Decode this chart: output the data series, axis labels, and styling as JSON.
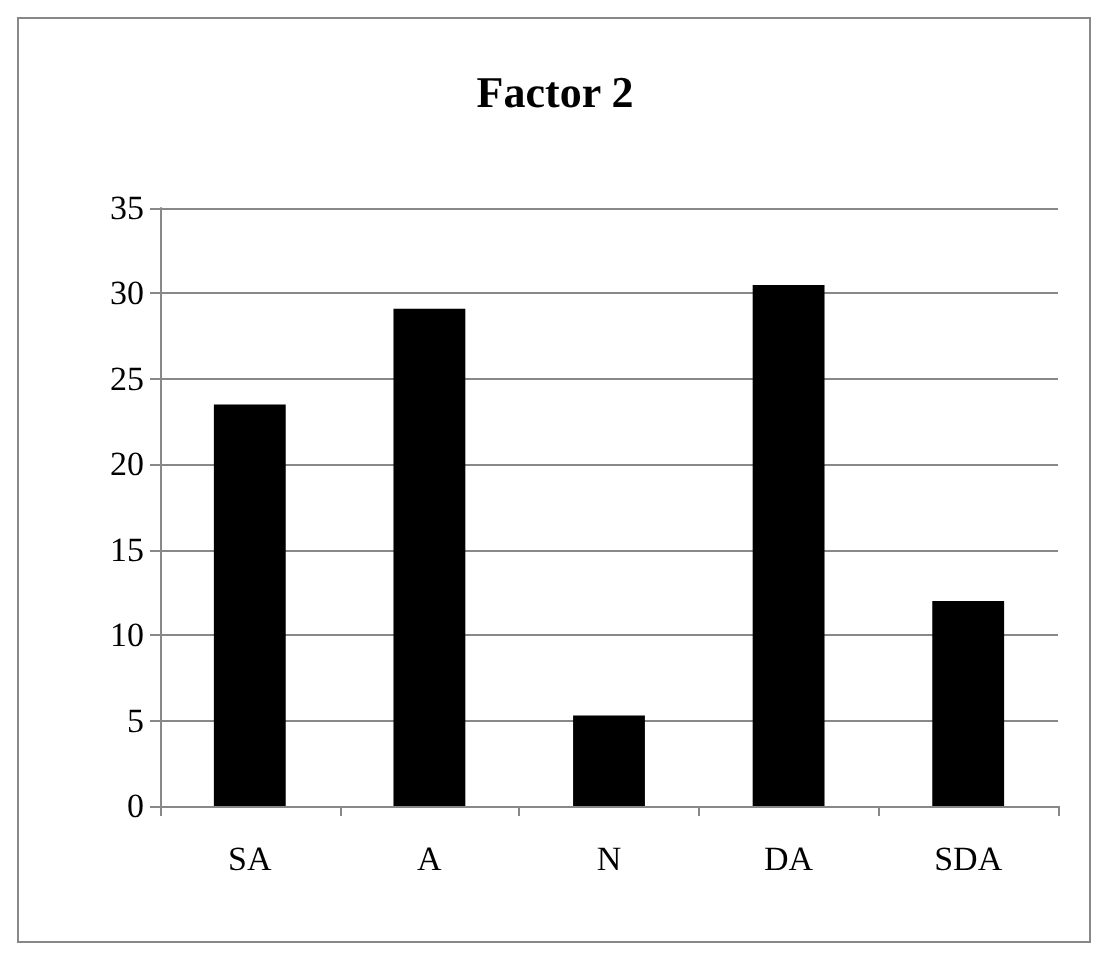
{
  "chart_data": {
    "type": "bar",
    "title": "Factor 2",
    "categories": [
      "SA",
      "A",
      "N",
      "DA",
      "SDA"
    ],
    "values": [
      23.5,
      29.1,
      5.3,
      30.5,
      12.0
    ],
    "color": "#000000",
    "ylim": [
      0,
      35
    ],
    "yticks": [
      0,
      5,
      10,
      15,
      20,
      25,
      30,
      35
    ],
    "grid": "y"
  }
}
